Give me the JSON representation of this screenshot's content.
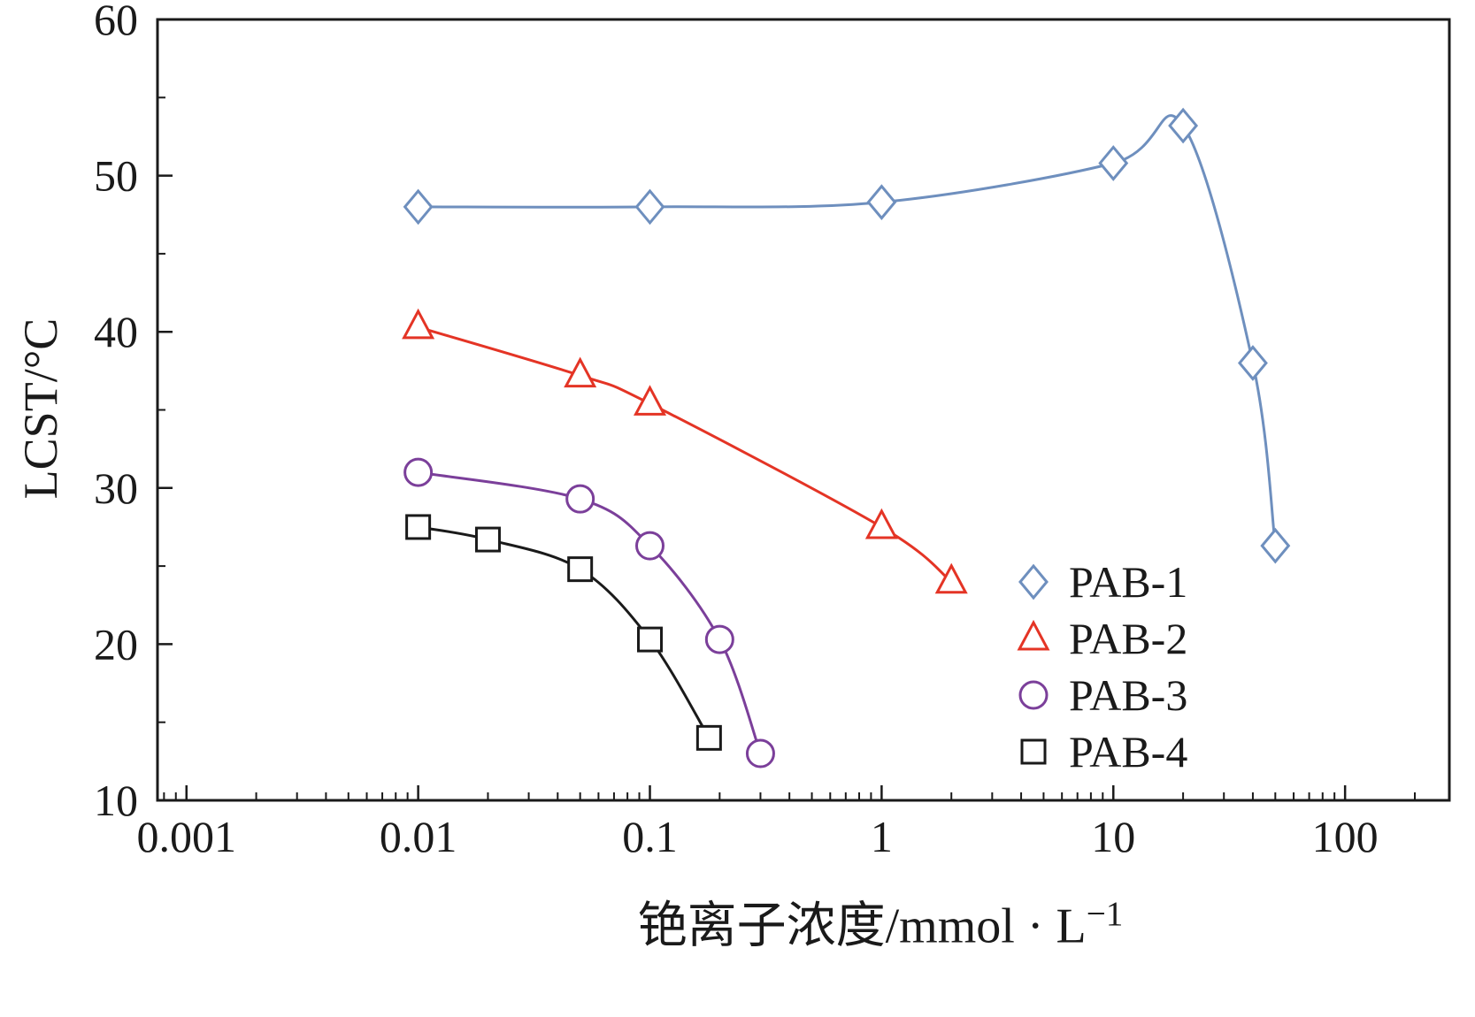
{
  "figure": {
    "x_axis": {
      "label_main": "铯离子浓度/mmol · L",
      "label_sup": "−1",
      "tick_labels": [
        "0.001",
        "0.01",
        "0.1",
        "1",
        "10",
        "100"
      ],
      "tick_values": [
        0.001,
        0.01,
        0.1,
        1,
        10,
        100
      ],
      "log_min": -3.125,
      "log_max": 2.45
    },
    "y_axis": {
      "label": "LCST/°C",
      "tick_labels": [
        "10",
        "20",
        "30",
        "40",
        "50",
        "60"
      ],
      "tick_values": [
        10,
        20,
        30,
        40,
        50,
        60
      ],
      "min": 10,
      "max": 60,
      "minor_step": 5
    },
    "frame_color": "#1a1a1a"
  },
  "chart_data": {
    "type": "line",
    "x_scale": "log",
    "xlabel": "铯离子浓度/mmol·L−1",
    "ylabel": "LCST/°C",
    "xlim": [
      0.001,
      100
    ],
    "ylim": [
      10,
      60
    ],
    "grid": false,
    "legend_position": "lower right",
    "series": [
      {
        "name": "PAB-1",
        "marker": "diamond",
        "color": "#6e8fbe",
        "points": [
          [
            0.01,
            48.0
          ],
          [
            0.1,
            48.0
          ],
          [
            1,
            48.3
          ],
          [
            10,
            50.8
          ],
          [
            20,
            53.2
          ],
          [
            40,
            38.0
          ],
          [
            50,
            26.3
          ]
        ]
      },
      {
        "name": "PAB-2",
        "marker": "triangle",
        "color": "#e43425",
        "points": [
          [
            0.01,
            40.3
          ],
          [
            0.05,
            37.2
          ],
          [
            0.1,
            35.4
          ],
          [
            1,
            27.5
          ],
          [
            2,
            24.0
          ]
        ]
      },
      {
        "name": "PAB-3",
        "marker": "circle",
        "color": "#7b3f9a",
        "points": [
          [
            0.01,
            31.0
          ],
          [
            0.05,
            29.3
          ],
          [
            0.1,
            26.3
          ],
          [
            0.2,
            20.3
          ],
          [
            0.3,
            13.0
          ]
        ]
      },
      {
        "name": "PAB-4",
        "marker": "square",
        "color": "#1a1a1a",
        "points": [
          [
            0.01,
            27.5
          ],
          [
            0.02,
            26.7
          ],
          [
            0.05,
            24.8
          ],
          [
            0.1,
            20.3
          ],
          [
            0.18,
            14.0
          ]
        ]
      }
    ]
  }
}
